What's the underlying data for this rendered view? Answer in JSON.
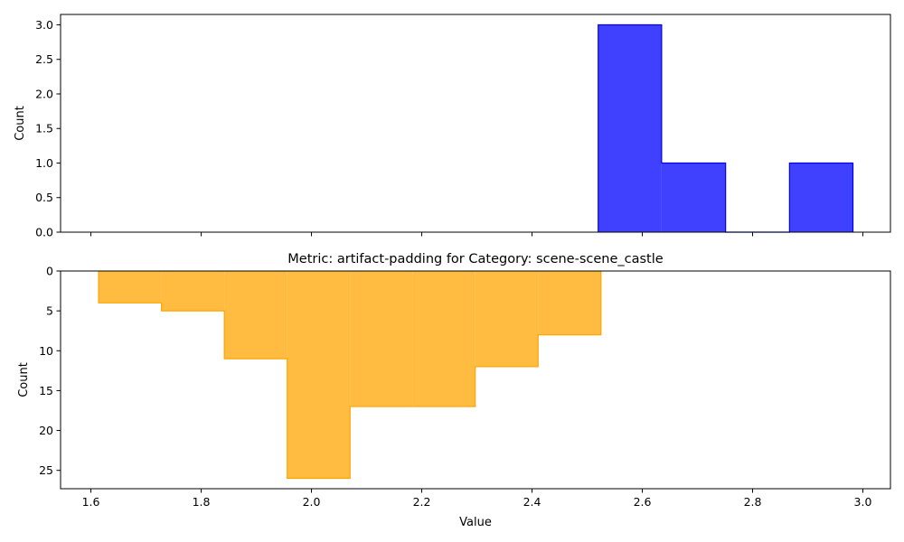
{
  "chart_data": [
    {
      "type": "histogram",
      "title": "",
      "xlabel": "",
      "ylabel": "Count",
      "xlim": [
        1.545,
        3.05
      ],
      "ylim": [
        0,
        3.15
      ],
      "y_inverted": false,
      "grid": false,
      "show_xtick_labels": false,
      "color": "#0000ff",
      "edge_color": "#0000ff",
      "bins": [
        {
          "x0": 2.52,
          "x1": 2.635,
          "count": 3
        },
        {
          "x0": 2.635,
          "x1": 2.751,
          "count": 1
        },
        {
          "x0": 2.751,
          "x1": 2.867,
          "count": 0
        },
        {
          "x0": 2.867,
          "x1": 2.982,
          "count": 1
        }
      ],
      "xticks": [
        1.6,
        1.8,
        2.0,
        2.2,
        2.4,
        2.6,
        2.8,
        3.0
      ],
      "xtick_labels": [],
      "yticks": [
        0.0,
        0.5,
        1.0,
        1.5,
        2.0,
        2.5,
        3.0
      ],
      "ytick_labels": [
        "0.0",
        "0.5",
        "1.0",
        "1.5",
        "2.0",
        "2.5",
        "3.0"
      ]
    },
    {
      "type": "histogram",
      "title": "Metric: artifact-padding for Category: scene-scene_castle",
      "xlabel": "Value",
      "ylabel": "Count",
      "xlim": [
        1.545,
        3.05
      ],
      "ylim": [
        0,
        27.3
      ],
      "y_inverted": true,
      "grid": false,
      "show_xtick_labels": true,
      "color": "#ffa500",
      "edge_color": "#ffa500",
      "bins": [
        {
          "x0": 1.614,
          "x1": 1.728,
          "count": 4
        },
        {
          "x0": 1.728,
          "x1": 1.842,
          "count": 5
        },
        {
          "x0": 1.842,
          "x1": 1.956,
          "count": 11
        },
        {
          "x0": 1.956,
          "x1": 2.07,
          "count": 26
        },
        {
          "x0": 2.07,
          "x1": 2.184,
          "count": 17
        },
        {
          "x0": 2.184,
          "x1": 2.297,
          "count": 17
        },
        {
          "x0": 2.297,
          "x1": 2.411,
          "count": 12
        },
        {
          "x0": 2.411,
          "x1": 2.525,
          "count": 8
        }
      ],
      "xticks": [
        1.6,
        1.8,
        2.0,
        2.2,
        2.4,
        2.6,
        2.8,
        3.0
      ],
      "xtick_labels": [
        "1.6",
        "1.8",
        "2.0",
        "2.2",
        "2.4",
        "2.6",
        "2.8",
        "3.0"
      ],
      "yticks": [
        0,
        5,
        10,
        15,
        20,
        25
      ],
      "ytick_labels": [
        "0",
        "5",
        "10",
        "15",
        "20",
        "25"
      ]
    }
  ]
}
